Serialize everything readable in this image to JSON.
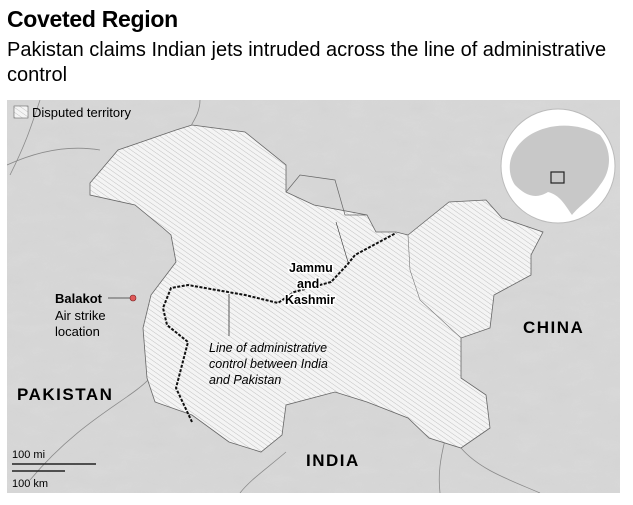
{
  "header": {
    "title": "Coveted Region",
    "subtitle": "Pakistan claims Indian jets intruded across the line of administrative control"
  },
  "legend": {
    "label": "Disputed territory",
    "icon": "hatch-swatch-icon"
  },
  "labels": {
    "pakistan": "PAKISTAN",
    "india": "INDIA",
    "china": "CHINA",
    "region": [
      "Jammu",
      "and",
      "Kashmir"
    ],
    "balakot_name": "Balakot",
    "balakot_desc": [
      "Air strike",
      "location"
    ],
    "loc": [
      "Line of administrative",
      "control between India",
      "and Pakistan"
    ]
  },
  "scale": {
    "miles": "100 mi",
    "km": "100 km"
  },
  "colors": {
    "background": "#d3d3d3",
    "disputed": "#f2f2f2",
    "strike_marker": "#e05a5a",
    "border": "#555555"
  }
}
